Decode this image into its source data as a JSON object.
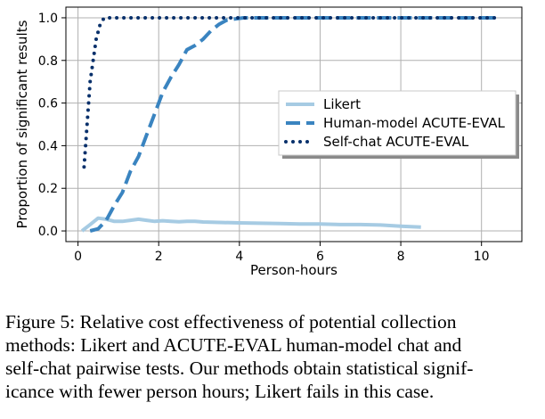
{
  "chart_data": {
    "type": "line",
    "title": "",
    "xlabel": "Person-hours",
    "ylabel": "Proportion of significant results",
    "xlim": [
      -0.3,
      11.0
    ],
    "ylim": [
      -0.05,
      1.05
    ],
    "xticks": [
      0,
      2,
      4,
      6,
      8,
      10
    ],
    "yticks": [
      0.0,
      0.2,
      0.4,
      0.6,
      0.8,
      1.0
    ],
    "xtick_labels": [
      "0",
      "2",
      "4",
      "6",
      "8",
      "10"
    ],
    "ytick_labels": [
      "0.0",
      "0.2",
      "0.4",
      "0.6",
      "0.8",
      "1.0"
    ],
    "grid": true,
    "legend_position": "center-right",
    "series": [
      {
        "name": "Likert",
        "color": "#a6cbe3",
        "style": "solid",
        "x": [
          0.1,
          0.3,
          0.5,
          0.7,
          0.9,
          1.1,
          1.3,
          1.5,
          1.7,
          1.9,
          2.1,
          2.3,
          2.5,
          2.7,
          2.9,
          3.1,
          3.5,
          4.0,
          4.5,
          5.0,
          5.5,
          6.0,
          6.5,
          7.0,
          7.5,
          8.0,
          8.5
        ],
        "y": [
          0.0,
          0.03,
          0.06,
          0.055,
          0.045,
          0.045,
          0.05,
          0.055,
          0.05,
          0.045,
          0.048,
          0.045,
          0.043,
          0.045,
          0.045,
          0.042,
          0.04,
          0.038,
          0.036,
          0.035,
          0.033,
          0.033,
          0.03,
          0.03,
          0.028,
          0.022,
          0.018
        ]
      },
      {
        "name": "Human-model ACUTE-EVAL",
        "color": "#3a84c0",
        "style": "dashed",
        "x": [
          0.3,
          0.5,
          0.7,
          0.9,
          1.1,
          1.3,
          1.5,
          1.7,
          1.9,
          2.1,
          2.3,
          2.5,
          2.7,
          2.9,
          3.1,
          3.3,
          3.5,
          3.7,
          3.9,
          4.1,
          4.5,
          5.0,
          6.0,
          7.0,
          8.0,
          9.0,
          10.0,
          10.4
        ],
        "y": [
          0.0,
          0.01,
          0.05,
          0.12,
          0.18,
          0.28,
          0.35,
          0.45,
          0.55,
          0.65,
          0.72,
          0.78,
          0.85,
          0.87,
          0.9,
          0.94,
          0.97,
          0.99,
          0.995,
          1.0,
          1.0,
          1.0,
          1.0,
          1.0,
          1.0,
          1.0,
          1.0,
          1.0
        ]
      },
      {
        "name": "Self-chat ACUTE-EVAL",
        "color": "#08306b",
        "style": "dotted",
        "x": [
          0.15,
          0.3,
          0.45,
          0.55,
          0.65,
          0.8,
          1.0,
          2.0,
          3.0,
          4.0,
          5.0,
          6.0,
          7.0,
          8.0,
          9.0,
          10.0,
          10.4
        ],
        "y": [
          0.3,
          0.7,
          0.9,
          0.97,
          1.0,
          1.0,
          1.0,
          1.0,
          1.0,
          1.0,
          1.0,
          1.0,
          1.0,
          1.0,
          1.0,
          1.0,
          1.0
        ]
      }
    ]
  },
  "caption": {
    "lines": [
      "Figure 5: Relative cost effectiveness of potential collection",
      "methods: Likert and ACUTE-EVAL human-model chat and",
      "self-chat pairwise tests. Our methods obtain statistical signif-",
      "icance with fewer person hours; Likert fails in this case."
    ]
  }
}
